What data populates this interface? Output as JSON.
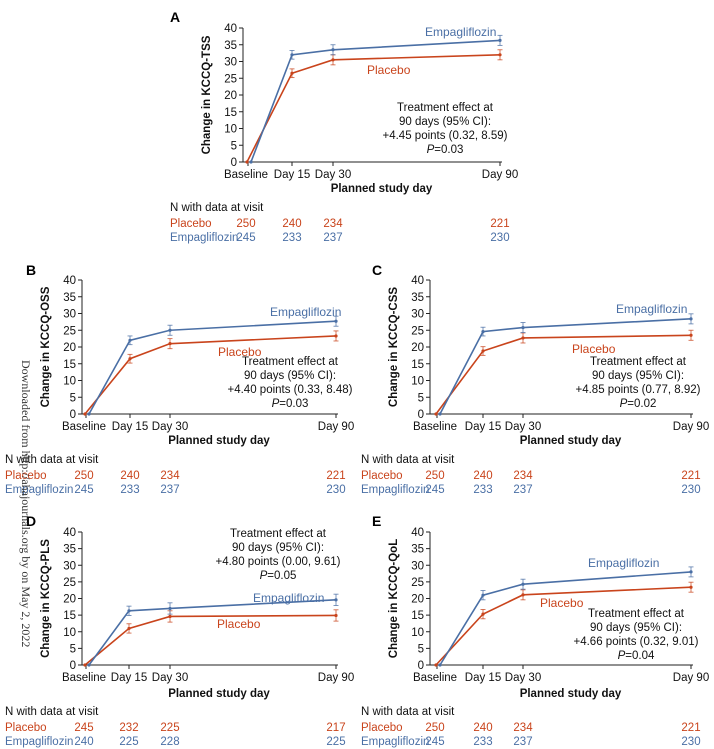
{
  "colors": {
    "placebo": "#c9441c",
    "empagliflozin": "#4a6fa5",
    "axis": "#222222"
  },
  "watermark": "Downloaded from http://ahajournals.org by on May 2, 2022",
  "chart_data": [
    {
      "panel": "A",
      "type": "line",
      "ylabel": "Change in KCCQ-TSS",
      "xlabel": "Planned study day",
      "ylim": [
        0,
        40
      ],
      "yticks": [
        0,
        5,
        10,
        15,
        20,
        25,
        30,
        35,
        40
      ],
      "categories": [
        "Baseline",
        "Day 15",
        "Day 30",
        "Day 90"
      ],
      "x_days": [
        0,
        15,
        30,
        90
      ],
      "series": [
        {
          "name": "Placebo",
          "values": [
            0,
            26.5,
            30.5,
            32
          ],
          "err": [
            0,
            1.3,
            1.5,
            1.5
          ]
        },
        {
          "name": "Empagliflozin",
          "values": [
            0,
            32,
            33.5,
            36.3
          ],
          "err": [
            0,
            1.3,
            1.5,
            1.5
          ]
        }
      ],
      "annotation": [
        "Treatment effect at",
        "90 days (95% CI):",
        "+4.45 points (0.32, 8.59)",
        "P=0.03"
      ],
      "n_header": "N with data at visit",
      "n_rows": [
        {
          "label": "Placebo",
          "values": [
            "250",
            "240",
            "234",
            "221"
          ]
        },
        {
          "label": "Empagliflozin",
          "values": [
            "245",
            "233",
            "237",
            "230"
          ]
        }
      ]
    },
    {
      "panel": "B",
      "type": "line",
      "ylabel": "Change in KCCQ-OSS",
      "xlabel": "Planned study day",
      "ylim": [
        0,
        40
      ],
      "yticks": [
        0,
        5,
        10,
        15,
        20,
        25,
        30,
        35,
        40
      ],
      "categories": [
        "Baseline",
        "Day 15",
        "Day 30",
        "Day 90"
      ],
      "x_days": [
        0,
        15,
        30,
        90
      ],
      "series": [
        {
          "name": "Placebo",
          "values": [
            0,
            16.5,
            21,
            23.3
          ],
          "err": [
            0,
            1.3,
            1.5,
            1.5
          ]
        },
        {
          "name": "Empagliflozin",
          "values": [
            0,
            22,
            25,
            27.7
          ],
          "err": [
            0,
            1.3,
            1.5,
            1.5
          ]
        }
      ],
      "annotation": [
        "Treatment effect at",
        "90 days (95% CI):",
        "+4.40 points (0.33, 8.48)",
        "P=0.03"
      ],
      "n_header": "N with data at visit",
      "n_rows": [
        {
          "label": "Placebo",
          "values": [
            "250",
            "240",
            "234",
            "221"
          ]
        },
        {
          "label": "Empagliflozin",
          "values": [
            "245",
            "233",
            "237",
            "230"
          ]
        }
      ]
    },
    {
      "panel": "C",
      "type": "line",
      "ylabel": "Change in KCCQ-CSS",
      "xlabel": "Planned study day",
      "ylim": [
        0,
        40
      ],
      "yticks": [
        0,
        5,
        10,
        15,
        20,
        25,
        30,
        35,
        40
      ],
      "categories": [
        "Baseline",
        "Day 15",
        "Day 30",
        "Day 90"
      ],
      "x_days": [
        0,
        15,
        30,
        90
      ],
      "series": [
        {
          "name": "Placebo",
          "values": [
            0,
            18.8,
            22.7,
            23.5
          ],
          "err": [
            0,
            1.3,
            1.5,
            1.5
          ]
        },
        {
          "name": "Empagliflozin",
          "values": [
            0,
            24.6,
            25.8,
            28.4
          ],
          "err": [
            0,
            1.3,
            1.5,
            1.5
          ]
        }
      ],
      "annotation": [
        "Treatment effect at",
        "90 days (95% CI):",
        "+4.85 points (0.77, 8.92)",
        "P=0.02"
      ],
      "n_header": "N with data at visit",
      "n_rows": [
        {
          "label": "Placebo",
          "values": [
            "250",
            "240",
            "234",
            "221"
          ]
        },
        {
          "label": "Empagliflozin",
          "values": [
            "245",
            "233",
            "237",
            "230"
          ]
        }
      ]
    },
    {
      "panel": "D",
      "type": "line",
      "ylabel": "Change in KCCQ-PLS",
      "xlabel": "Planned study day",
      "ylim": [
        0,
        40
      ],
      "yticks": [
        0,
        5,
        10,
        15,
        20,
        25,
        30,
        35,
        40
      ],
      "categories": [
        "Baseline",
        "Day 15",
        "Day 30",
        "Day 90"
      ],
      "x_days": [
        0,
        15,
        30,
        90
      ],
      "series": [
        {
          "name": "Placebo",
          "values": [
            0,
            11,
            14.6,
            14.9
          ],
          "err": [
            0,
            1.4,
            1.7,
            1.7
          ]
        },
        {
          "name": "Empagliflozin",
          "values": [
            0,
            16.3,
            17,
            19.6
          ],
          "err": [
            0,
            1.4,
            1.7,
            1.7
          ]
        }
      ],
      "annotation": [
        "Treatment effect at",
        "90 days (95% CI):",
        "+4.80 points (0.00, 9.61)",
        "P=0.05"
      ],
      "n_header": "N with data at visit",
      "n_rows": [
        {
          "label": "Placebo",
          "values": [
            "245",
            "232",
            "225",
            "217"
          ]
        },
        {
          "label": "Empagliflozin",
          "values": [
            "240",
            "225",
            "228",
            "225"
          ]
        }
      ]
    },
    {
      "panel": "E",
      "type": "line",
      "ylabel": "Change in KCCQ-QoL",
      "xlabel": "Planned study day",
      "ylim": [
        0,
        40
      ],
      "yticks": [
        0,
        5,
        10,
        15,
        20,
        25,
        30,
        35,
        40
      ],
      "categories": [
        "Baseline",
        "Day 15",
        "Day 30",
        "Day 90"
      ],
      "x_days": [
        0,
        15,
        30,
        90
      ],
      "series": [
        {
          "name": "Placebo",
          "values": [
            0,
            15.3,
            21.1,
            23.4
          ],
          "err": [
            0,
            1.4,
            1.5,
            1.5
          ]
        },
        {
          "name": "Empagliflozin",
          "values": [
            0,
            21,
            24.3,
            28
          ],
          "err": [
            0,
            1.4,
            1.5,
            1.5
          ]
        }
      ],
      "annotation": [
        "Treatment effect at",
        "90 days (95% CI):",
        "+4.66 points (0.32, 9.01)",
        "P=0.04"
      ],
      "n_header": "N with data at visit",
      "n_rows": [
        {
          "label": "Placebo",
          "values": [
            "250",
            "240",
            "234",
            "221"
          ]
        },
        {
          "label": "Empagliflozin",
          "values": [
            "245",
            "233",
            "237",
            "230"
          ]
        }
      ]
    }
  ]
}
